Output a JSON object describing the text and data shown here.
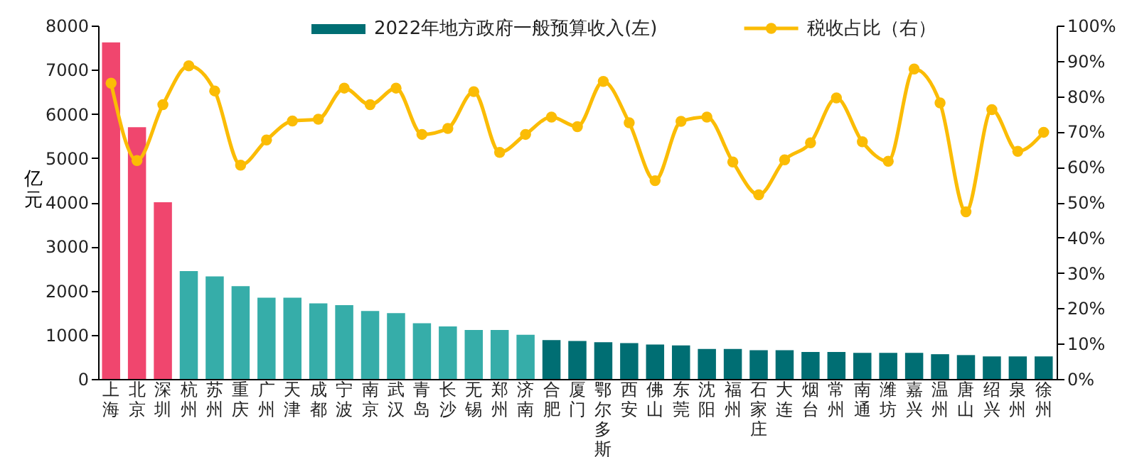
{
  "chart_data": {
    "type": "bar",
    "ylabel": "亿元",
    "legend": "top right",
    "grid": false,
    "categories": [
      "上海",
      "北京",
      "深圳",
      "杭州",
      "苏州",
      "重庆",
      "广州",
      "天津",
      "成都",
      "宁波",
      "南京",
      "武汉",
      "青岛",
      "长沙",
      "无锡",
      "郑州",
      "济南",
      "合肥",
      "厦门",
      "鄂尔多斯",
      "西安",
      "佛山",
      "东莞",
      "沈阳",
      "福州",
      "石家庄",
      "大连",
      "烟台",
      "常州",
      "南通",
      "潍坊",
      "嘉兴",
      "温州",
      "唐山",
      "绍兴",
      "泉州",
      "徐州"
    ],
    "ylim": [
      0,
      8000
    ],
    "yticks": [
      0,
      1000,
      2000,
      3000,
      4000,
      5000,
      6000,
      7000,
      8000
    ],
    "y2lim": [
      0,
      100
    ],
    "y2ticks": [
      {
        "value": 0,
        "label": "0%"
      },
      {
        "value": 10,
        "label": "10%"
      },
      {
        "value": 20,
        "label": "20%"
      },
      {
        "value": 30,
        "label": "30%"
      },
      {
        "value": 40,
        "label": "40%"
      },
      {
        "value": 50,
        "label": "50%"
      },
      {
        "value": 60,
        "label": "60%"
      },
      {
        "value": 70,
        "label": "70%"
      },
      {
        "value": 80,
        "label": "80%"
      },
      {
        "value": 90,
        "label": "90%"
      },
      {
        "value": 100,
        "label": "100%"
      }
    ],
    "series": [
      {
        "name": "2022年地方政府一般预算收入(左)",
        "color": "#006e73",
        "colors": [
          "#f0466e",
          "#f0466e",
          "#f0466e",
          "#36ada9",
          "#36ada9",
          "#36ada9",
          "#36ada9",
          "#36ada9",
          "#36ada9",
          "#36ada9",
          "#36ada9",
          "#36ada9",
          "#36ada9",
          "#36ada9",
          "#36ada9",
          "#36ada9",
          "#36ada9",
          "#006e73",
          "#006e73",
          "#006e73",
          "#006e73",
          "#006e73",
          "#006e73",
          "#006e73",
          "#006e73",
          "#006e73",
          "#006e73",
          "#006e73",
          "#006e73",
          "#006e73",
          "#006e73",
          "#006e73",
          "#006e73",
          "#006e73",
          "#006e73",
          "#006e73",
          "#006e73"
        ],
        "values": [
          7620,
          5700,
          4000,
          2440,
          2320,
          2100,
          1840,
          1840,
          1710,
          1670,
          1540,
          1490,
          1260,
          1190,
          1110,
          1110,
          1000,
          880,
          860,
          830,
          810,
          780,
          760,
          680,
          680,
          650,
          650,
          610,
          610,
          590,
          590,
          590,
          560,
          540,
          510,
          510,
          510
        ]
      },
      {
        "name": "税收占比（右）",
        "type": "line",
        "axis": "y2",
        "color": "#fbbc05",
        "marker": "circle",
        "line_style": "solid",
        "values": [
          83.7,
          61.8,
          77.6,
          88.6,
          81.5,
          60.5,
          67.6,
          73.0,
          73.5,
          82.3,
          77.6,
          82.3,
          69.2,
          70.9,
          81.3,
          64.1,
          69.2,
          74.1,
          71.4,
          84.2,
          72.5,
          56.1,
          72.9,
          74.1,
          61.4,
          52.1,
          62.0,
          66.8,
          79.5,
          67.1,
          61.6,
          87.7,
          78.1,
          47.3,
          76.2,
          64.4,
          69.8
        ]
      }
    ]
  }
}
